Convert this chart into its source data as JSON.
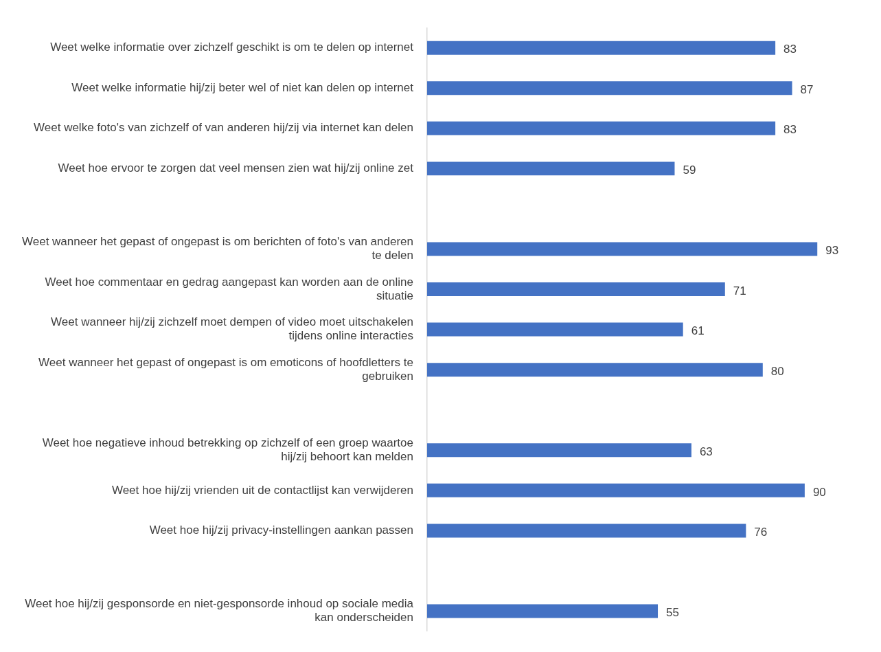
{
  "chart_data": {
    "type": "bar",
    "orientation": "horizontal",
    "data_labels": true,
    "legend": false,
    "tick_labels": "y",
    "categories": [
      "Weet welke informatie over zichzelf geschikt is om te delen op internet",
      "Weet welke informatie hij/zij beter wel of niet kan delen op internet",
      "Weet welke foto's van zichzelf of van anderen hij/zij via internet kan delen",
      "Weet hoe ervoor te zorgen dat veel mensen zien wat hij/zij online zet",
      null,
      "Weet wanneer het gepast of ongepast is om berichten of foto's van anderen te delen",
      "Weet hoe commentaar en gedrag aangepast kan worden aan de online situatie",
      "Weet wanneer hij/zij zichzelf moet dempen of video moet uitschakelen tijdens online interacties",
      "Weet wanneer het gepast of ongepast is om emoticons of hoofdletters te gebruiken",
      null,
      "Weet hoe negatieve inhoud betrekking op zichzelf of een groep waartoe hij/zij behoort kan melden",
      "Weet hoe hij/zij vrienden uit de contactlijst kan verwijderen",
      "Weet hoe hij/zij privacy-instellingen aankan passen",
      null,
      "Weet hoe hij/zij gesponsorde en niet-gesponsorde inhoud op sociale media kan onderscheiden"
    ],
    "values": [
      83,
      87,
      83,
      59,
      null,
      93,
      71,
      61,
      80,
      null,
      63,
      90,
      76,
      null,
      55
    ],
    "color": "#4472c4"
  }
}
